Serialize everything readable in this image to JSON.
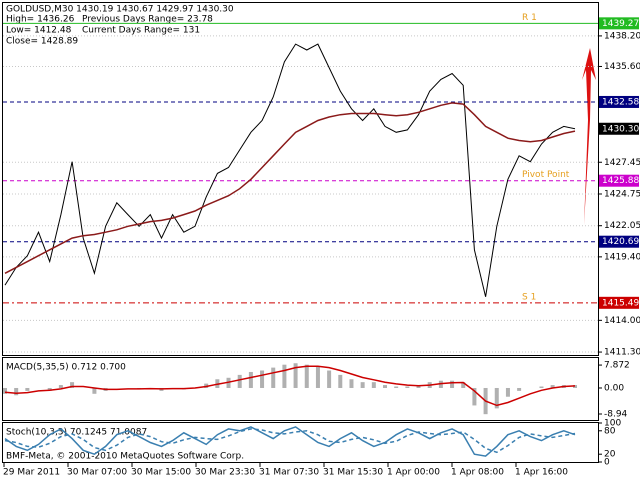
{
  "chart_data": [
    {
      "type": "line",
      "title": "GOLDUSD,M30 1430.19 1430.67 1429.97 1430.30",
      "stats": [
        "High= 1436.26",
        "Previous Days Range= 23.78",
        "Low= 1412.48",
        "Current Days Range= 131",
        "Close= 1428.89"
      ],
      "x_tick_labels": [
        "29 Mar 2011",
        "30 Mar 07:00",
        "30 Mar 15:00",
        "30 Mar 23:30",
        "31 Mar 07:30",
        "31 Mar 15:30",
        "1 Apr 00:00",
        "1 Apr 08:00",
        "1 Apr 16:00"
      ],
      "ylim": [
        1411.05,
        1441.0
      ],
      "yticks": [
        {
          "value": 1438.2,
          "label": "1438.20"
        },
        {
          "value": 1435.6,
          "label": "1435.60"
        },
        1427.45,
        1424.75,
        1422.05,
        {
          "value": 1419.4,
          "label": "1419.40"
        },
        {
          "value": 1414.0,
          "label": "1414.00"
        },
        {
          "value": 1411.3,
          "label": "1411.30"
        }
      ],
      "grid": true,
      "series": [
        {
          "color": "#000000",
          "values": [
            1417,
            1418.5,
            1419.5,
            1421.5,
            1419,
            1423,
            1427.5,
            1421,
            1418,
            1422,
            1424,
            1423,
            1422,
            1423,
            1421,
            1423,
            1421.5,
            1422,
            1424.5,
            1426.5,
            1427,
            1428.5,
            1430,
            1431,
            1433,
            1436,
            1437.5,
            1437,
            1437.5,
            1435.5,
            1433.5,
            1432,
            1431,
            1432,
            1430.5,
            1430,
            1430.2,
            1431.5,
            1433.5,
            1434.5,
            1435,
            1434,
            1420,
            1416,
            1422,
            1426,
            1428,
            1427.5,
            1429,
            1430,
            1430.5,
            1430.3
          ]
        },
        {
          "color": "#8b1a1a",
          "values": [
            1418,
            1418.5,
            1419,
            1419.5,
            1420,
            1420.5,
            1421,
            1421.2,
            1421.3,
            1421.5,
            1421.7,
            1422,
            1422.2,
            1422.4,
            1422.5,
            1422.7,
            1423,
            1423.3,
            1423.8,
            1424.2,
            1424.6,
            1425.2,
            1426,
            1427,
            1428,
            1429,
            1430,
            1430.5,
            1431,
            1431.3,
            1431.5,
            1431.6,
            1431.6,
            1431.6,
            1431.5,
            1431.4,
            1431.5,
            1431.7,
            1432,
            1432.3,
            1432.5,
            1432.4,
            1431.5,
            1430.5,
            1430,
            1429.5,
            1429.3,
            1429.2,
            1429.3,
            1429.6,
            1429.9,
            1430.1
          ]
        }
      ],
      "levels": [
        {
          "value": 1439.27,
          "label": "1439.27",
          "color": "#22bb22",
          "style": "solid",
          "name": "R 1",
          "name_color": "#e6a020"
        },
        {
          "value": 1432.58,
          "label": "1432.58",
          "color": "#000080",
          "style": "dashed"
        },
        {
          "value": 1430.3,
          "label": "1430.30",
          "color": "#000000",
          "style": "none"
        },
        {
          "value": 1425.88,
          "label": "1425.88",
          "color": "#cc00cc",
          "style": "dashed",
          "name": "Pivot Point",
          "name_color": "#e6a020"
        },
        {
          "value": 1420.69,
          "label": "1420.69",
          "color": "#000080",
          "style": "dashed"
        },
        {
          "value": 1415.49,
          "label": "1415.49",
          "color": "#cc0000",
          "style": "dashdot",
          "name": "S 1",
          "name_color": "#e6a020"
        }
      ]
    },
    {
      "type": "macd",
      "title": "MACD(5,35,5) 0.712 0.700",
      "ylim": [
        -11,
        10.3
      ],
      "yticks": [
        7.872,
        {
          "value": 0,
          "label": "0.00"
        },
        -8.94
      ],
      "series": [
        {
          "color": "#b0b0b0",
          "style": "histogram",
          "values": [
            -2,
            -2.5,
            -1,
            0,
            -1,
            1,
            2,
            0,
            -2,
            -1,
            0,
            0,
            -0.5,
            0,
            -1,
            0,
            -0.5,
            0,
            1.5,
            3,
            3.5,
            4.5,
            5.5,
            6,
            7,
            8,
            8.5,
            8,
            7.5,
            6,
            4.5,
            3,
            2,
            2,
            1,
            0.5,
            0.5,
            1,
            2,
            2.5,
            2.5,
            2,
            -6,
            -9,
            -7,
            -3,
            -1,
            0,
            0.5,
            1,
            1,
            1
          ]
        },
        {
          "color": "#cc0000",
          "style": "line",
          "values": [
            -1.5,
            -1.8,
            -1.6,
            -1,
            -0.8,
            -0.3,
            0.5,
            0.5,
            0,
            -0.5,
            -0.5,
            -0.3,
            -0.3,
            -0.2,
            -0.3,
            -0.2,
            -0.2,
            0,
            0.5,
            1.3,
            2,
            2.8,
            3.6,
            4.4,
            5.2,
            6,
            7,
            7.5,
            7.5,
            7,
            6,
            4.8,
            3.6,
            2.8,
            2,
            1.4,
            1,
            0.8,
            1,
            1.5,
            1.8,
            1.9,
            -1,
            -4.5,
            -6,
            -5,
            -3.5,
            -2,
            -0.8,
            0,
            0.5,
            0.7
          ]
        }
      ]
    },
    {
      "type": "line",
      "title": "Stoch(10,3,3) 70.1245 71.0087",
      "annotation": "BMF-Meta, © 2001-2010 MetaQuotes Software Corp.",
      "ylim": [
        0,
        100
      ],
      "yticks": [
        100,
        80,
        20,
        0
      ],
      "series": [
        {
          "color": "#3a7fb0",
          "style": "line",
          "values": [
            60,
            40,
            30,
            45,
            70,
            85,
            60,
            30,
            20,
            40,
            70,
            80,
            65,
            50,
            40,
            55,
            75,
            60,
            45,
            70,
            85,
            80,
            90,
            75,
            60,
            80,
            90,
            70,
            50,
            40,
            60,
            75,
            55,
            40,
            50,
            70,
            85,
            75,
            60,
            75,
            85,
            70,
            20,
            15,
            40,
            70,
            80,
            65,
            55,
            70,
            80,
            70
          ]
        },
        {
          "color": "#3a7fb0",
          "style": "dashed",
          "values": [
            55,
            50,
            40,
            38,
            48,
            65,
            72,
            58,
            37,
            30,
            43,
            63,
            72,
            65,
            52,
            48,
            57,
            63,
            60,
            58,
            67,
            78,
            85,
            82,
            75,
            72,
            77,
            80,
            70,
            53,
            50,
            58,
            63,
            57,
            48,
            53,
            68,
            77,
            73,
            70,
            73,
            77,
            58,
            35,
            25,
            42,
            63,
            72,
            67,
            63,
            68,
            73
          ]
        }
      ]
    }
  ]
}
